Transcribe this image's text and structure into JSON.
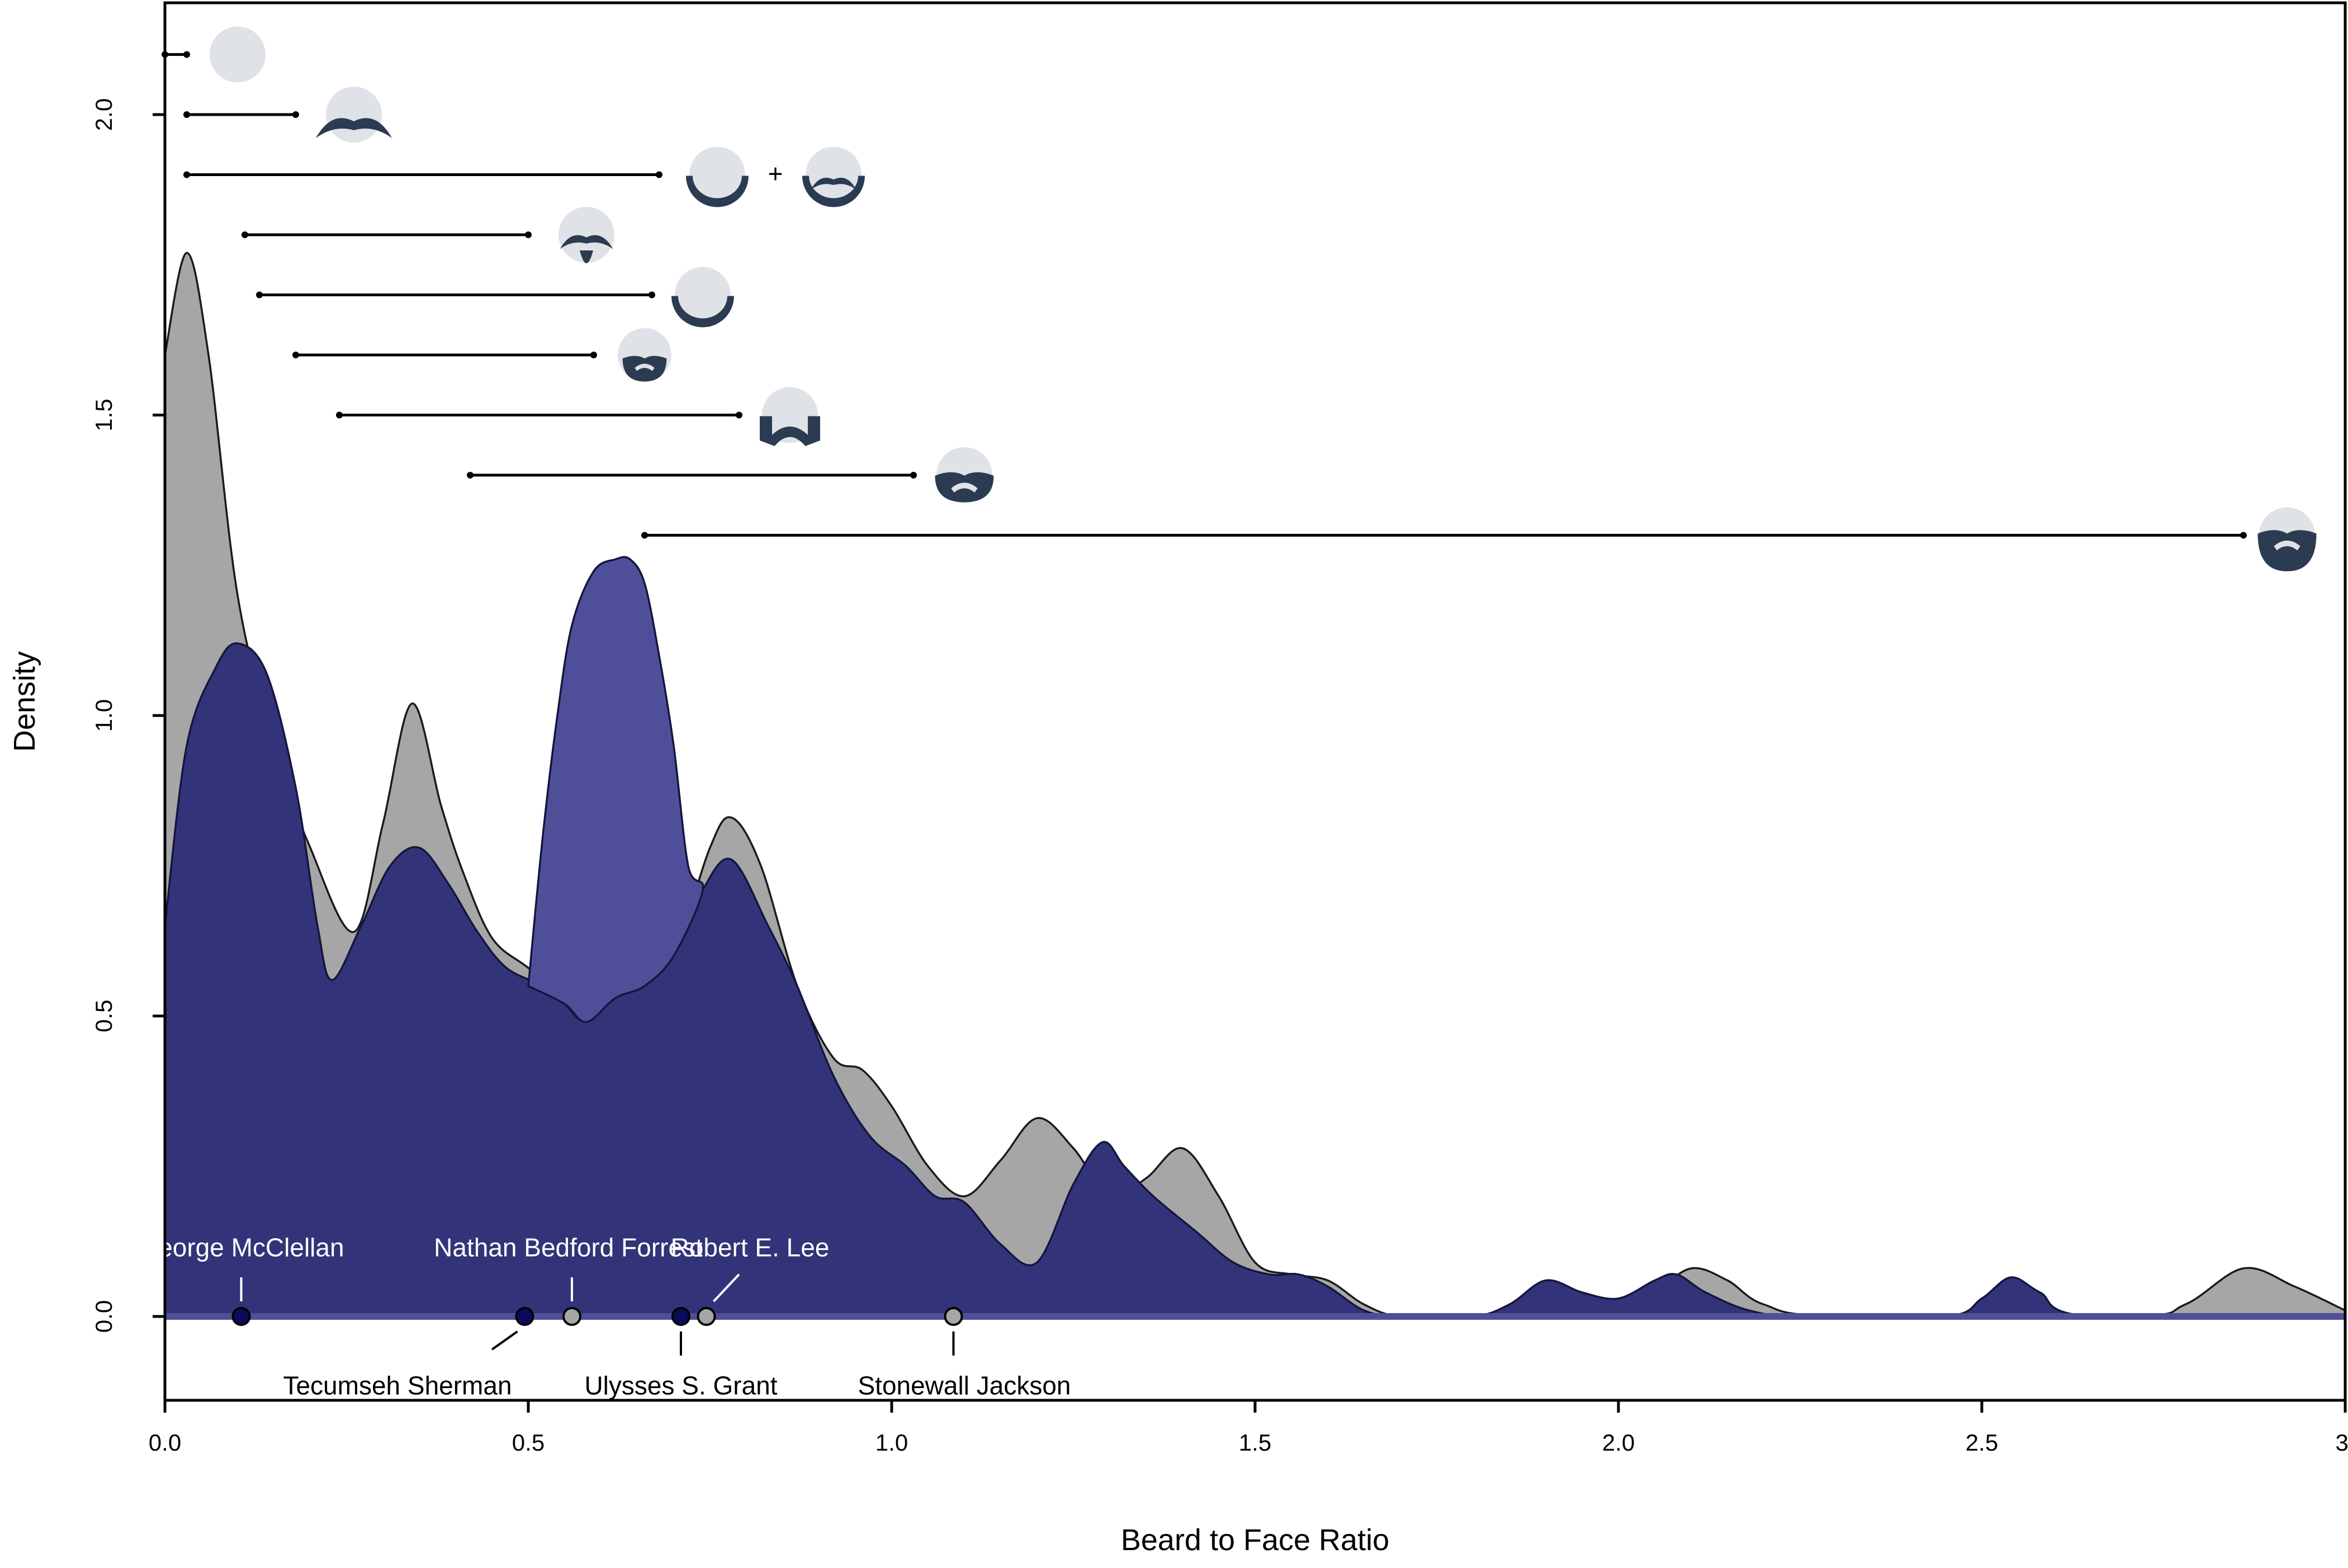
{
  "chart_data": {
    "type": "area",
    "xlabel": "Beard to Face Ratio",
    "ylabel": "Density",
    "xlim": [
      0,
      3
    ],
    "ylim": [
      -0.14,
      2.19
    ],
    "x_ticks": [
      "0.0",
      "0.5",
      "1.0",
      "1.5",
      "2.0",
      "2.5",
      "3."
    ],
    "y_ticks": [
      "0.0",
      "0.5",
      "1.0",
      "1.5",
      "2.0"
    ],
    "colors": {
      "gray": "#a6a6a6",
      "navy_fill": "#333379",
      "navy_light": "#4f4f99",
      "icon_face": "#dfe2e6",
      "icon_hair": "#2b3b52"
    },
    "series": [
      {
        "color": "#a6a6a6",
        "points": [
          [
            0,
            1.6
          ],
          [
            0.03,
            1.77
          ],
          [
            0.06,
            1.6
          ],
          [
            0.1,
            1.2
          ],
          [
            0.15,
            0.95
          ],
          [
            0.2,
            0.78
          ],
          [
            0.26,
            0.64
          ],
          [
            0.3,
            0.82
          ],
          [
            0.34,
            1.02
          ],
          [
            0.38,
            0.85
          ],
          [
            0.41,
            0.74
          ],
          [
            0.45,
            0.63
          ],
          [
            0.5,
            0.58
          ],
          [
            0.55,
            0.53
          ],
          [
            0.59,
            0.5
          ],
          [
            0.62,
            0.53
          ],
          [
            0.66,
            0.56
          ],
          [
            0.7,
            0.6
          ],
          [
            0.75,
            0.78
          ],
          [
            0.78,
            0.83
          ],
          [
            0.82,
            0.75
          ],
          [
            0.87,
            0.55
          ],
          [
            0.92,
            0.43
          ],
          [
            0.96,
            0.41
          ],
          [
            1.0,
            0.35
          ],
          [
            1.05,
            0.25
          ],
          [
            1.1,
            0.2
          ],
          [
            1.15,
            0.26
          ],
          [
            1.2,
            0.33
          ],
          [
            1.25,
            0.28
          ],
          [
            1.3,
            0.2
          ],
          [
            1.35,
            0.23
          ],
          [
            1.4,
            0.28
          ],
          [
            1.45,
            0.2
          ],
          [
            1.5,
            0.09
          ],
          [
            1.55,
            0.07
          ],
          [
            1.6,
            0.06
          ],
          [
            1.65,
            0.02
          ],
          [
            1.7,
            0.0
          ],
          [
            1.8,
            0.0
          ],
          [
            1.9,
            0.0
          ],
          [
            2.0,
            0.01
          ],
          [
            2.05,
            0.04
          ],
          [
            2.1,
            0.08
          ],
          [
            2.15,
            0.06
          ],
          [
            2.2,
            0.02
          ],
          [
            2.3,
            0.0
          ],
          [
            2.7,
            0.0
          ],
          [
            2.78,
            0.02
          ],
          [
            2.86,
            0.08
          ],
          [
            2.93,
            0.05
          ],
          [
            3.0,
            0.01
          ]
        ]
      },
      {
        "color": "#333379",
        "points": [
          [
            0,
            0.65
          ],
          [
            0.03,
            0.95
          ],
          [
            0.07,
            1.08
          ],
          [
            0.1,
            1.12
          ],
          [
            0.14,
            1.07
          ],
          [
            0.18,
            0.88
          ],
          [
            0.21,
            0.65
          ],
          [
            0.23,
            0.56
          ],
          [
            0.27,
            0.65
          ],
          [
            0.31,
            0.75
          ],
          [
            0.35,
            0.78
          ],
          [
            0.39,
            0.72
          ],
          [
            0.43,
            0.64
          ],
          [
            0.47,
            0.58
          ],
          [
            0.52,
            0.55
          ],
          [
            0.55,
            0.52
          ],
          [
            0.58,
            0.49
          ],
          [
            0.62,
            0.53
          ],
          [
            0.66,
            0.55
          ],
          [
            0.7,
            0.6
          ],
          [
            0.74,
            0.71
          ],
          [
            0.78,
            0.76
          ],
          [
            0.83,
            0.65
          ],
          [
            0.87,
            0.55
          ],
          [
            0.92,
            0.4
          ],
          [
            0.97,
            0.3
          ],
          [
            1.02,
            0.25
          ],
          [
            1.06,
            0.2
          ],
          [
            1.1,
            0.19
          ],
          [
            1.15,
            0.12
          ],
          [
            1.2,
            0.09
          ],
          [
            1.25,
            0.22
          ],
          [
            1.29,
            0.29
          ],
          [
            1.32,
            0.25
          ],
          [
            1.36,
            0.2
          ],
          [
            1.42,
            0.14
          ],
          [
            1.47,
            0.09
          ],
          [
            1.52,
            0.07
          ],
          [
            1.56,
            0.07
          ],
          [
            1.6,
            0.05
          ],
          [
            1.65,
            0.01
          ],
          [
            1.7,
            0.0
          ],
          [
            1.8,
            0.0
          ],
          [
            1.85,
            0.02
          ],
          [
            1.9,
            0.06
          ],
          [
            1.95,
            0.04
          ],
          [
            2.0,
            0.03
          ],
          [
            2.05,
            0.06
          ],
          [
            2.08,
            0.07
          ],
          [
            2.12,
            0.04
          ],
          [
            2.18,
            0.01
          ],
          [
            2.25,
            0.0
          ],
          [
            2.45,
            0.0
          ],
          [
            2.5,
            0.03
          ],
          [
            2.54,
            0.065
          ],
          [
            2.58,
            0.04
          ],
          [
            2.65,
            0.0
          ],
          [
            3.0,
            0.0
          ]
        ]
      },
      {
        "color": "#4f4f99",
        "points": [
          [
            0.5,
            0.55
          ],
          [
            0.52,
            0.8
          ],
          [
            0.54,
            1.0
          ],
          [
            0.56,
            1.15
          ],
          [
            0.59,
            1.24
          ],
          [
            0.62,
            1.26
          ],
          [
            0.64,
            1.26
          ],
          [
            0.66,
            1.22
          ],
          [
            0.68,
            1.1
          ],
          [
            0.7,
            0.95
          ],
          [
            0.72,
            0.75
          ],
          [
            0.74,
            0.71
          ],
          [
            0.7,
            0.6
          ],
          [
            0.66,
            0.55
          ],
          [
            0.62,
            0.53
          ],
          [
            0.58,
            0.49
          ],
          [
            0.55,
            0.52
          ],
          [
            0.5,
            0.55
          ]
        ]
      }
    ],
    "ranges": [
      {
        "x_start": 0.0,
        "x_end": 0.03,
        "y": 2.1
      },
      {
        "x_start": 0.03,
        "x_end": 0.18,
        "y": 2.0
      },
      {
        "x_start": 0.03,
        "x_end": 0.68,
        "y": 1.9
      },
      {
        "x_start": 0.11,
        "x_end": 0.5,
        "y": 1.8
      },
      {
        "x_start": 0.13,
        "x_end": 0.67,
        "y": 1.7
      },
      {
        "x_start": 0.18,
        "x_end": 0.59,
        "y": 1.6
      },
      {
        "x_start": 0.24,
        "x_end": 0.79,
        "y": 1.5
      },
      {
        "x_start": 0.42,
        "x_end": 1.03,
        "y": 1.4
      },
      {
        "x_start": 0.66,
        "x_end": 2.86,
        "y": 1.3
      }
    ],
    "icons": [
      {
        "style": "clean-shaven",
        "x": 0.1,
        "y": 2.1
      },
      {
        "style": "mustache",
        "x": 0.26,
        "y": 2.0
      },
      {
        "style": "chin-curtain",
        "x": 0.76,
        "y": 1.9
      },
      {
        "style": "mutton-chops-mustache",
        "x": 0.92,
        "y": 1.9
      },
      {
        "style": "goatee-mustache",
        "x": 0.58,
        "y": 1.8
      },
      {
        "style": "chin-curtain",
        "x": 0.74,
        "y": 1.7
      },
      {
        "style": "full-small",
        "x": 0.66,
        "y": 1.6
      },
      {
        "style": "mutton-chops",
        "x": 0.86,
        "y": 1.5
      },
      {
        "style": "full-medium",
        "x": 1.1,
        "y": 1.4
      },
      {
        "style": "full-large",
        "x": 2.92,
        "y": 1.3
      }
    ],
    "plus_sign": {
      "text": "+",
      "x": 0.84,
      "y": 1.9
    },
    "generals": [
      {
        "name": "George McClellan",
        "x": 0.105,
        "y": 0.0,
        "group": "navy",
        "label_pos": "above"
      },
      {
        "name": "Tecumseh Sherman",
        "x": 0.495,
        "y": 0.0,
        "group": "navy",
        "label_pos": "below"
      },
      {
        "name": "Nathan Bedford Forrest",
        "x": 0.56,
        "y": 0.0,
        "group": "gray",
        "label_pos": "above"
      },
      {
        "name": "Ulysses S. Grant",
        "x": 0.71,
        "y": 0.0,
        "group": "navy",
        "label_pos": "below"
      },
      {
        "name": "Robert E. Lee",
        "x": 0.745,
        "y": 0.0,
        "group": "gray",
        "label_pos": "above"
      },
      {
        "name": "Stonewall Jackson",
        "x": 1.085,
        "y": 0.0,
        "group": "gray",
        "label_pos": "below"
      }
    ]
  }
}
